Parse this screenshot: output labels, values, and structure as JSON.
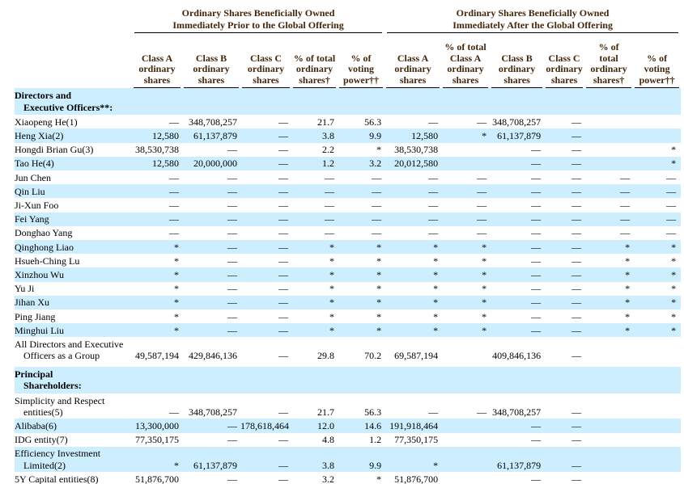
{
  "colors": {
    "highlight_row": "#cceeff",
    "header_text": "#44260b",
    "body_text": "#000000",
    "rule": "#000000"
  },
  "header": {
    "groups": [
      {
        "line1": "Ordinary Shares Beneficially Owned",
        "line2": "Immediately Prior to the Global Offering",
        "span": 5
      },
      {
        "line1": "Ordinary Shares Beneficially Owned",
        "line2": "Immediately After the Global Offering",
        "span": 6
      }
    ],
    "columns": [
      {
        "id": "prior-class-a-shares",
        "lines": [
          "Class A",
          "ordinary",
          "shares"
        ]
      },
      {
        "id": "prior-class-b-shares",
        "lines": [
          "Class B",
          "ordinary",
          "shares"
        ]
      },
      {
        "id": "prior-class-c-shares",
        "lines": [
          "Class C",
          "ordinary",
          "shares"
        ]
      },
      {
        "id": "prior-pct-total",
        "lines": [
          "% of total",
          "ordinary",
          "shares†"
        ]
      },
      {
        "id": "prior-pct-voting",
        "lines": [
          "% of",
          "voting",
          "power††"
        ]
      },
      {
        "id": "after-class-a-shares",
        "lines": [
          "Class A",
          "ordinary",
          "shares"
        ]
      },
      {
        "id": "after-pct-class-a",
        "lines": [
          "% of total",
          "Class A",
          "ordinary",
          "shares"
        ]
      },
      {
        "id": "after-class-b-shares",
        "lines": [
          "Class B",
          "ordinary",
          "shares"
        ]
      },
      {
        "id": "after-class-c-shares",
        "lines": [
          "Class C",
          "ordinary",
          "shares"
        ]
      },
      {
        "id": "after-pct-total",
        "lines": [
          "% of",
          "total",
          "ordinary",
          "shares†"
        ]
      },
      {
        "id": "after-pct-voting",
        "lines": [
          "% of",
          "voting",
          "power††"
        ]
      }
    ]
  },
  "rows": [
    {
      "type": "section",
      "bg": "blue",
      "lines": [
        "Directors and",
        "Executive Officers**:"
      ]
    },
    {
      "type": "data",
      "bg": "white",
      "label": [
        "Xiaopeng He(1)"
      ],
      "cells": [
        "—",
        "348,708,257",
        "—",
        "21.7",
        "56.3",
        "—",
        "—",
        "348,708,257",
        "—",
        "",
        ""
      ]
    },
    {
      "type": "data",
      "bg": "blue",
      "label": [
        "Heng Xia(2)"
      ],
      "cells": [
        "12,580",
        "61,137,879",
        "—",
        "3.8",
        "9.9",
        "12,580",
        "*",
        "61,137,879",
        "—",
        "",
        ""
      ]
    },
    {
      "type": "data",
      "bg": "white",
      "label": [
        "Hongdi Brian Gu(3)"
      ],
      "cells": [
        "38,530,738",
        "—",
        "—",
        "2.2",
        "*",
        "38,530,738",
        "",
        "—",
        "—",
        "",
        "*"
      ]
    },
    {
      "type": "data",
      "bg": "blue",
      "label": [
        "Tao He(4)"
      ],
      "cells": [
        "12,580",
        "20,000,000",
        "—",
        "1.2",
        "3.2",
        "20,012,580",
        "",
        "—",
        "—",
        "",
        "*"
      ]
    },
    {
      "type": "data",
      "bg": "white",
      "label": [
        "Jun Chen"
      ],
      "cells": [
        "—",
        "—",
        "—",
        "—",
        "—",
        "—",
        "—",
        "—",
        "—",
        "—",
        "—"
      ]
    },
    {
      "type": "data",
      "bg": "blue",
      "label": [
        "Qin Liu"
      ],
      "cells": [
        "—",
        "—",
        "—",
        "—",
        "—",
        "—",
        "—",
        "—",
        "—",
        "—",
        "—"
      ]
    },
    {
      "type": "data",
      "bg": "white",
      "label": [
        "Ji-Xun Foo"
      ],
      "cells": [
        "—",
        "—",
        "—",
        "—",
        "—",
        "—",
        "—",
        "—",
        "—",
        "—",
        "—"
      ]
    },
    {
      "type": "data",
      "bg": "blue",
      "label": [
        "Fei Yang"
      ],
      "cells": [
        "—",
        "—",
        "—",
        "—",
        "—",
        "—",
        "—",
        "—",
        "—",
        "—",
        "—"
      ]
    },
    {
      "type": "data",
      "bg": "white",
      "label": [
        "Donghao Yang"
      ],
      "cells": [
        "—",
        "—",
        "—",
        "—",
        "—",
        "—",
        "—",
        "—",
        "—",
        "—",
        "—"
      ]
    },
    {
      "type": "data",
      "bg": "blue",
      "label": [
        "Qinghong Liao"
      ],
      "cells": [
        "*",
        "—",
        "—",
        "*",
        "*",
        "*",
        "*",
        "—",
        "—",
        "*",
        "*"
      ]
    },
    {
      "type": "data",
      "bg": "white",
      "label": [
        "Hsueh-Ching Lu"
      ],
      "cells": [
        "*",
        "—",
        "—",
        "*",
        "*",
        "*",
        "*",
        "—",
        "—",
        "*",
        "*"
      ]
    },
    {
      "type": "data",
      "bg": "blue",
      "label": [
        "Xinzhou Wu"
      ],
      "cells": [
        "*",
        "—",
        "—",
        "*",
        "*",
        "*",
        "*",
        "—",
        "—",
        "*",
        "*"
      ]
    },
    {
      "type": "data",
      "bg": "white",
      "label": [
        "Yu Ji"
      ],
      "cells": [
        "*",
        "—",
        "—",
        "*",
        "*",
        "*",
        "*",
        "—",
        "—",
        "*",
        "*"
      ]
    },
    {
      "type": "data",
      "bg": "blue",
      "label": [
        "Jihan Xu"
      ],
      "cells": [
        "*",
        "—",
        "—",
        "*",
        "*",
        "*",
        "*",
        "—",
        "—",
        "*",
        "*"
      ]
    },
    {
      "type": "data",
      "bg": "white",
      "label": [
        "Ping Jiang"
      ],
      "cells": [
        "*",
        "—",
        "—",
        "*",
        "*",
        "*",
        "*",
        "—",
        "—",
        "*",
        "*"
      ]
    },
    {
      "type": "data",
      "bg": "blue",
      "label": [
        "Minghui Liu"
      ],
      "cells": [
        "*",
        "—",
        "—",
        "*",
        "*",
        "*",
        "*",
        "—",
        "—",
        "*",
        "*"
      ]
    },
    {
      "type": "data",
      "bg": "white",
      "label": [
        "All Directors and Executive",
        "Officers as a Group"
      ],
      "cells": [
        "49,587,194",
        "429,846,136",
        "—",
        "29.8",
        "70.2",
        "69,587,194",
        "",
        "409,846,136",
        "—",
        "",
        ""
      ]
    },
    {
      "type": "gap"
    },
    {
      "type": "section",
      "bg": "blue",
      "lines": [
        "Principal",
        "Shareholders:"
      ]
    },
    {
      "type": "data",
      "bg": "white",
      "label": [
        "Simplicity and Respect",
        "entities(5)"
      ],
      "cells": [
        "—",
        "348,708,257",
        "—",
        "21.7",
        "56.3",
        "—",
        "—",
        "348,708,257",
        "—",
        "",
        ""
      ]
    },
    {
      "type": "data",
      "bg": "blue",
      "label": [
        "Alibaba(6)"
      ],
      "cells": [
        "13,300,000",
        "—",
        "178,618,464",
        "12.0",
        "14.6",
        "191,918,464",
        "",
        "—",
        "—",
        "",
        ""
      ]
    },
    {
      "type": "data",
      "bg": "white",
      "label": [
        "IDG entity(7)"
      ],
      "cells": [
        "77,350,175",
        "—",
        "—",
        "4.8",
        "1.2",
        "77,350,175",
        "",
        "—",
        "—",
        "",
        ""
      ]
    },
    {
      "type": "data",
      "bg": "blue",
      "label": [
        "Efficiency Investment",
        "Limited(2)"
      ],
      "cells": [
        "*",
        "61,137,879",
        "—",
        "3.8",
        "9.9",
        "*",
        "",
        "61,137,879",
        "—",
        "",
        ""
      ]
    },
    {
      "type": "data",
      "bg": "white",
      "label": [
        "5Y Capital entities(8)"
      ],
      "cells": [
        "51,876,700",
        "—",
        "—",
        "3.2",
        "*",
        "51,876,700",
        "",
        "—",
        "—",
        "",
        ""
      ]
    }
  ]
}
